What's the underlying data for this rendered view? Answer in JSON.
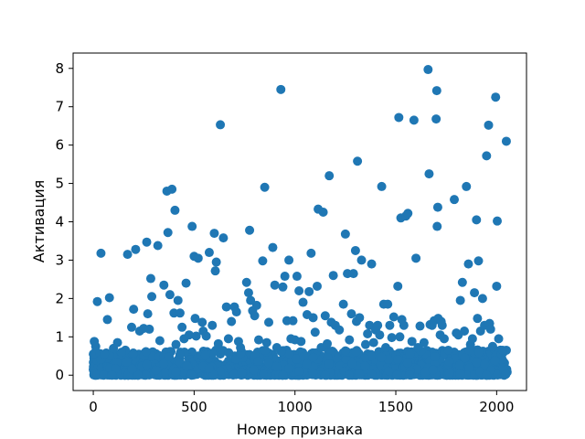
{
  "chart_data": {
    "type": "scatter",
    "title": "",
    "xlabel": "Номер признака",
    "ylabel": "Активация",
    "xlim": [
      -100,
      2148
    ],
    "ylim": [
      -0.4,
      8.4
    ],
    "xticks": [
      0,
      500,
      1000,
      1500,
      2000
    ],
    "yticks": [
      0,
      1,
      2,
      3,
      4,
      5,
      6,
      7,
      8
    ],
    "grid": false,
    "marker_color": "#1f77b4",
    "series": [
      {
        "points": [
          [
            5,
            0.88
          ],
          [
            12,
            0.75
          ],
          [
            20,
            1.92
          ],
          [
            38,
            3.18
          ],
          [
            55,
            0.55
          ],
          [
            70,
            1.45
          ],
          [
            80,
            2.02
          ],
          [
            100,
            0.7
          ],
          [
            120,
            0.85
          ],
          [
            140,
            0.6
          ],
          [
            170,
            3.15
          ],
          [
            190,
            1.25
          ],
          [
            200,
            1.72
          ],
          [
            210,
            3.28
          ],
          [
            230,
            1.15
          ],
          [
            250,
            1.22
          ],
          [
            265,
            3.47
          ],
          [
            270,
            1.6
          ],
          [
            278,
            1.2
          ],
          [
            285,
            2.52
          ],
          [
            290,
            2.05
          ],
          [
            320,
            3.38
          ],
          [
            330,
            0.9
          ],
          [
            350,
            2.35
          ],
          [
            365,
            4.8
          ],
          [
            370,
            3.72
          ],
          [
            380,
            2.1
          ],
          [
            390,
            4.85
          ],
          [
            400,
            1.62
          ],
          [
            405,
            4.3
          ],
          [
            410,
            0.8
          ],
          [
            420,
            1.95
          ],
          [
            430,
            1.62
          ],
          [
            440,
            1.25
          ],
          [
            450,
            0.95
          ],
          [
            460,
            2.4
          ],
          [
            475,
            1.05
          ],
          [
            490,
            3.88
          ],
          [
            500,
            3.1
          ],
          [
            505,
            1.48
          ],
          [
            510,
            1.02
          ],
          [
            520,
            3.05
          ],
          [
            540,
            1.38
          ],
          [
            545,
            1.15
          ],
          [
            560,
            1.02
          ],
          [
            575,
            3.2
          ],
          [
            590,
            1.3
          ],
          [
            600,
            3.7
          ],
          [
            605,
            2.72
          ],
          [
            610,
            2.95
          ],
          [
            620,
            0.82
          ],
          [
            630,
            6.53
          ],
          [
            645,
            3.58
          ],
          [
            660,
            1.78
          ],
          [
            670,
            0.95
          ],
          [
            685,
            1.4
          ],
          [
            700,
            1.78
          ],
          [
            710,
            1.65
          ],
          [
            720,
            0.88
          ],
          [
            730,
            0.72
          ],
          [
            760,
            2.42
          ],
          [
            770,
            2.15
          ],
          [
            775,
            3.78
          ],
          [
            780,
            1.95
          ],
          [
            790,
            1.68
          ],
          [
            800,
            1.55
          ],
          [
            810,
            1.82
          ],
          [
            820,
            0.92
          ],
          [
            840,
            2.98
          ],
          [
            850,
            4.9
          ],
          [
            860,
            0.85
          ],
          [
            870,
            1.38
          ],
          [
            890,
            3.33
          ],
          [
            900,
            2.35
          ],
          [
            910,
            0.72
          ],
          [
            930,
            7.45
          ],
          [
            940,
            2.3
          ],
          [
            950,
            2.58
          ],
          [
            960,
            1.42
          ],
          [
            970,
            3.0
          ],
          [
            980,
            0.95
          ],
          [
            990,
            1.42
          ],
          [
            1000,
            0.92
          ],
          [
            1010,
            2.58
          ],
          [
            1020,
            2.2
          ],
          [
            1030,
            0.88
          ],
          [
            1040,
            1.9
          ],
          [
            1060,
            1.58
          ],
          [
            1070,
            2.18
          ],
          [
            1080,
            3.18
          ],
          [
            1090,
            1.5
          ],
          [
            1100,
            1.12
          ],
          [
            1110,
            2.32
          ],
          [
            1115,
            4.33
          ],
          [
            1130,
            0.72
          ],
          [
            1140,
            4.25
          ],
          [
            1150,
            1.55
          ],
          [
            1160,
            0.82
          ],
          [
            1170,
            5.2
          ],
          [
            1180,
            1.38
          ],
          [
            1190,
            2.6
          ],
          [
            1200,
            1.3
          ],
          [
            1220,
            1.18
          ],
          [
            1240,
            1.85
          ],
          [
            1250,
            3.68
          ],
          [
            1260,
            2.65
          ],
          [
            1270,
            0.92
          ],
          [
            1280,
            1.6
          ],
          [
            1290,
            2.65
          ],
          [
            1300,
            3.25
          ],
          [
            1305,
            1.4
          ],
          [
            1310,
            5.58
          ],
          [
            1320,
            1.5
          ],
          [
            1330,
            3.0
          ],
          [
            1350,
            0.8
          ],
          [
            1360,
            1.08
          ],
          [
            1370,
            1.3
          ],
          [
            1380,
            2.9
          ],
          [
            1390,
            0.85
          ],
          [
            1400,
            1.18
          ],
          [
            1410,
            1.3
          ],
          [
            1420,
            1.05
          ],
          [
            1430,
            4.92
          ],
          [
            1440,
            1.85
          ],
          [
            1450,
            0.72
          ],
          [
            1460,
            1.85
          ],
          [
            1470,
            1.3
          ],
          [
            1480,
            0.98
          ],
          [
            1490,
            1.52
          ],
          [
            1510,
            2.32
          ],
          [
            1515,
            6.72
          ],
          [
            1520,
            1.0
          ],
          [
            1525,
            4.1
          ],
          [
            1530,
            1.45
          ],
          [
            1540,
            1.3
          ],
          [
            1550,
            4.15
          ],
          [
            1560,
            4.22
          ],
          [
            1570,
            0.55
          ],
          [
            1580,
            0.88
          ],
          [
            1590,
            6.65
          ],
          [
            1600,
            3.05
          ],
          [
            1610,
            0.72
          ],
          [
            1620,
            1.28
          ],
          [
            1640,
            0.85
          ],
          [
            1660,
            7.97
          ],
          [
            1665,
            5.25
          ],
          [
            1670,
            1.32
          ],
          [
            1680,
            1.3
          ],
          [
            1690,
            1.42
          ],
          [
            1700,
            6.68
          ],
          [
            1703,
            7.42
          ],
          [
            1705,
            3.88
          ],
          [
            1708,
            4.38
          ],
          [
            1710,
            1.48
          ],
          [
            1720,
            1.05
          ],
          [
            1725,
            1.4
          ],
          [
            1730,
            1.3
          ],
          [
            1740,
            0.95
          ],
          [
            1760,
            0.65
          ],
          [
            1790,
            4.58
          ],
          [
            1800,
            1.1
          ],
          [
            1810,
            1.05
          ],
          [
            1820,
            1.95
          ],
          [
            1830,
            2.42
          ],
          [
            1840,
            1.15
          ],
          [
            1850,
            4.92
          ],
          [
            1860,
            2.9
          ],
          [
            1870,
            0.8
          ],
          [
            1880,
            0.95
          ],
          [
            1890,
            2.15
          ],
          [
            1900,
            4.05
          ],
          [
            1905,
            1.48
          ],
          [
            1910,
            2.98
          ],
          [
            1920,
            1.15
          ],
          [
            1930,
            2.0
          ],
          [
            1940,
            1.3
          ],
          [
            1950,
            5.72
          ],
          [
            1960,
            6.52
          ],
          [
            1965,
            1.35
          ],
          [
            1970,
            1.2
          ],
          [
            1980,
            0.75
          ],
          [
            1995,
            7.25
          ],
          [
            2000,
            2.32
          ],
          [
            2003,
            4.02
          ],
          [
            2010,
            0.95
          ],
          [
            2030,
            0.65
          ],
          [
            2048,
            6.1
          ],
          [
            2050,
            0.15
          ],
          [
            2052,
            0.08
          ],
          [
            2040,
            0.05
          ],
          [
            2035,
            0.12
          ],
          [
            2045,
            0.02
          ]
        ]
      }
    ],
    "noise_band": {
      "count": 1400,
      "seed": 7,
      "x_range": [
        0,
        2048
      ],
      "y_scale": 0.22
    }
  }
}
